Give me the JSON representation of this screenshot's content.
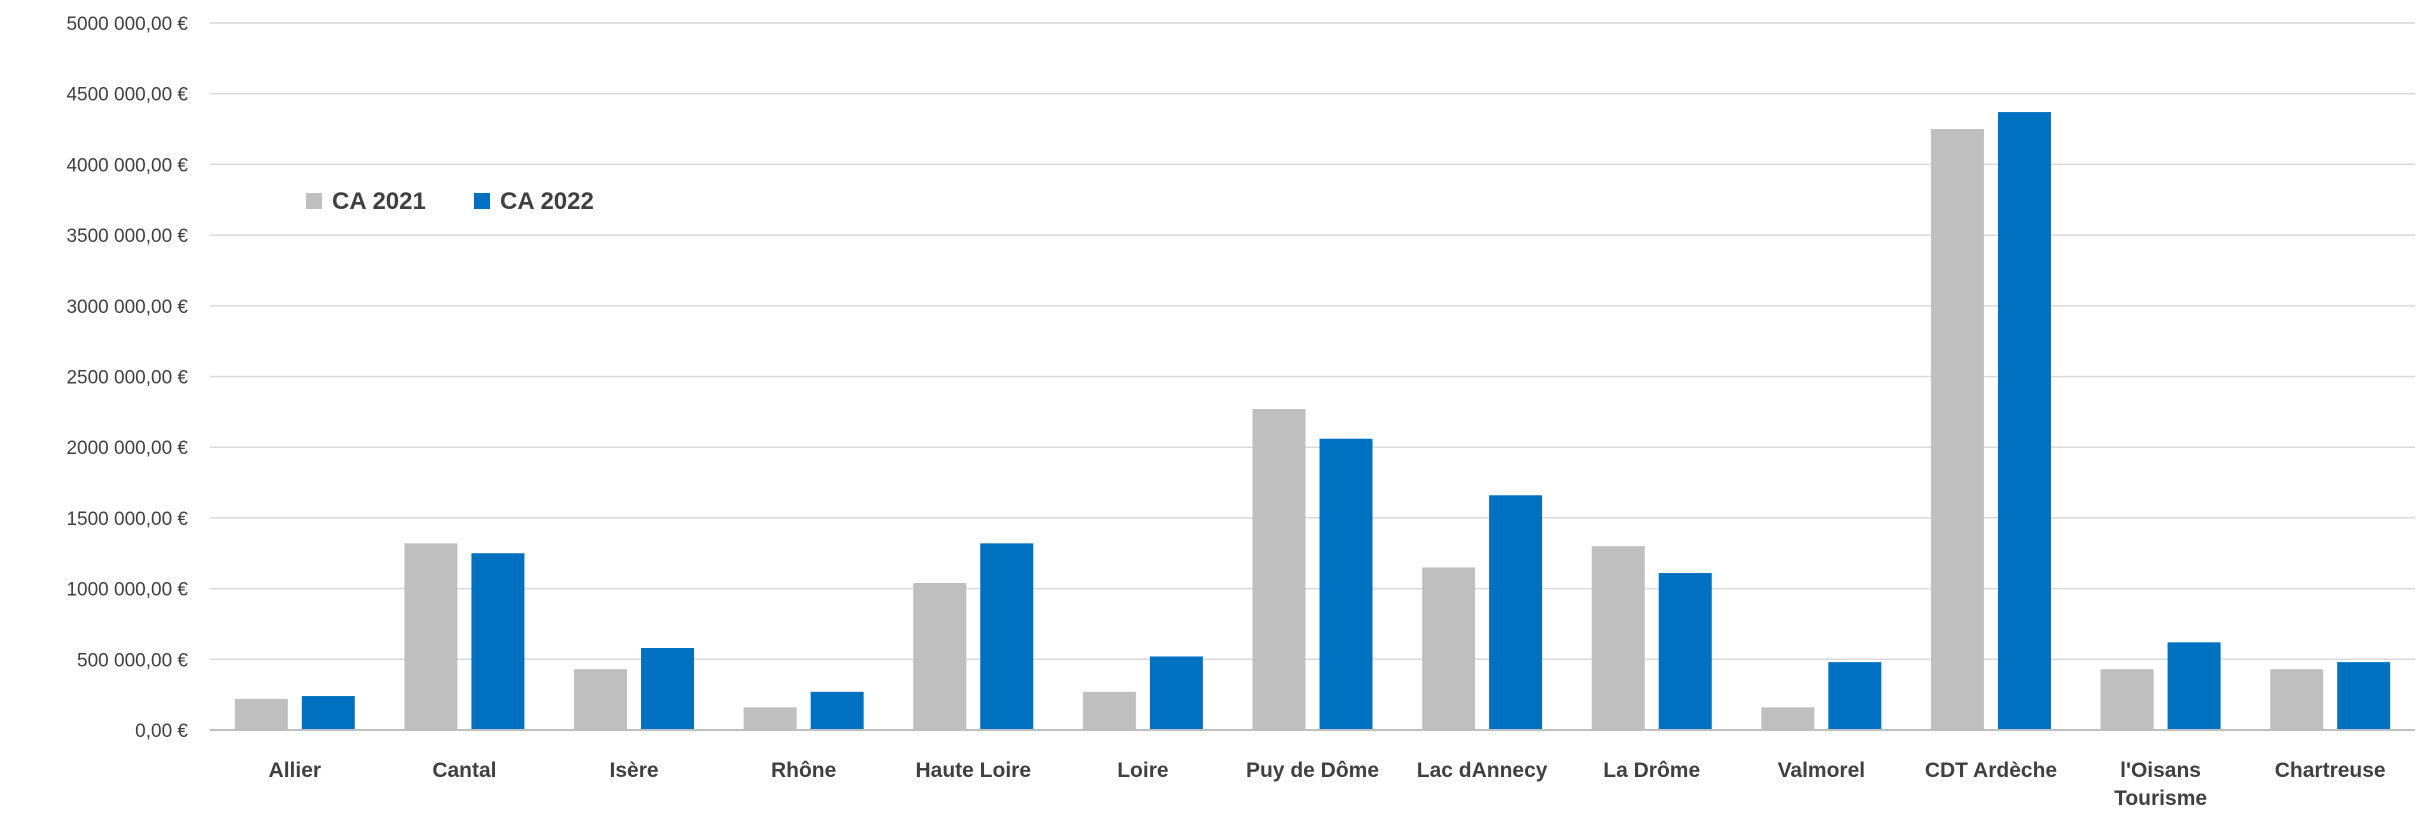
{
  "chart_data": {
    "type": "bar",
    "title": "",
    "xlabel": "",
    "ylabel": "",
    "categories": [
      [
        "Allier"
      ],
      [
        "Cantal"
      ],
      [
        "Isère"
      ],
      [
        "Rhône"
      ],
      [
        "Haute Loire"
      ],
      [
        "Loire"
      ],
      [
        "Puy de Dôme"
      ],
      [
        "Lac dAnnecy"
      ],
      [
        "La Drôme"
      ],
      [
        "Valmorel"
      ],
      [
        "CDT Ardèche"
      ],
      [
        "l'Oisans",
        "Tourisme"
      ],
      [
        "Chartreuse"
      ]
    ],
    "series": [
      {
        "name": "CA 2021",
        "color": "#bfbfbf",
        "values": [
          220000,
          1320000,
          430000,
          160000,
          1040000,
          270000,
          2270000,
          1150000,
          1300000,
          160000,
          4250000,
          430000,
          430000
        ]
      },
      {
        "name": "CA 2022",
        "color": "#0070c0",
        "values": [
          240000,
          1250000,
          580000,
          270000,
          1320000,
          520000,
          2060000,
          1660000,
          1110000,
          480000,
          4370000,
          620000,
          480000
        ]
      }
    ],
    "ylim": [
      0,
      5000000
    ],
    "yticks": [
      0,
      500000,
      1000000,
      1500000,
      2000000,
      2500000,
      3000000,
      3500000,
      4000000,
      4500000,
      5000000
    ],
    "ytick_labels": [
      "0,00 €",
      "500 000,00 €",
      "1000 000,00 €",
      "1500 000,00 €",
      "2000 000,00 €",
      "2500 000,00 €",
      "3000 000,00 €",
      "3500 000,00 €",
      "4000 000,00 €",
      "4500 000,00 €",
      "5000 000,00 €"
    ],
    "grid": true,
    "legend_position": "top-left"
  }
}
